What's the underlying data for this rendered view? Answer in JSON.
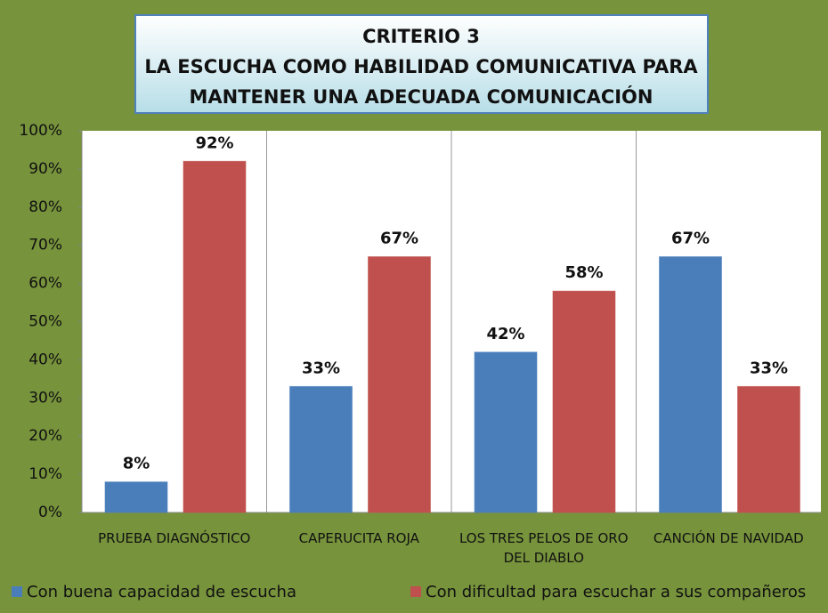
{
  "chart_data": {
    "type": "bar",
    "title": [
      "CRITERIO 3",
      "LA ESCUCHA COMO HABILIDAD COMUNICATIVA PARA",
      "MANTENER UNA ADECUADA COMUNICACIÓN"
    ],
    "categories": [
      "PRUEBA DIAGNÓSTICO",
      "CAPERUCITA ROJA",
      "LOS TRES PELOS DE ORO DEL DIABLO",
      "CANCIÓN DE NAVIDAD"
    ],
    "series": [
      {
        "name": "Con buena capacidad de escucha",
        "color": "#4a7ebb",
        "values": [
          8,
          33,
          42,
          67
        ],
        "value_labels": [
          "8%",
          "33%",
          "42%",
          "67%"
        ]
      },
      {
        "name": "Con dificultad para escuchar a sus compañeros",
        "color": "#c0504d",
        "values": [
          92,
          67,
          58,
          33
        ],
        "value_labels": [
          "92%",
          "67%",
          "58%",
          "33%"
        ]
      }
    ],
    "ylim": [
      0,
      100
    ],
    "yticks": [
      {
        "value": 0,
        "label": "0%"
      },
      {
        "value": 10,
        "label": "10%"
      },
      {
        "value": 20,
        "label": "20%"
      },
      {
        "value": 30,
        "label": "30%"
      },
      {
        "value": 40,
        "label": "40%"
      },
      {
        "value": 50,
        "label": "50%"
      },
      {
        "value": 60,
        "label": "60%"
      },
      {
        "value": 70,
        "label": "70%"
      },
      {
        "value": 80,
        "label": "80%"
      },
      {
        "value": 90,
        "label": "90%"
      },
      {
        "value": 100,
        "label": "100%"
      }
    ],
    "legend": "bottom"
  }
}
